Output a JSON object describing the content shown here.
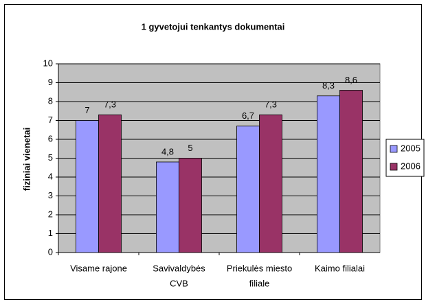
{
  "chart_data": {
    "type": "bar",
    "title": "1 gyvetojui tenkantys dokumentai",
    "y_label": "fiziniai vienetai",
    "categories": [
      [
        "Visame rajone"
      ],
      [
        "Savivaldybės",
        "CVB"
      ],
      [
        "Priekulės miesto",
        "filiale"
      ],
      [
        "Kaimo filialai"
      ]
    ],
    "series": [
      {
        "name": "2005",
        "color": "#9999ff",
        "values": [
          7,
          4.8,
          6.7,
          8.3
        ],
        "value_labels": [
          "7",
          "4,8",
          "6,7",
          "8,3"
        ]
      },
      {
        "name": "2006",
        "color": "#993366",
        "values": [
          7.3,
          5,
          7.3,
          8.6
        ],
        "value_labels": [
          "7,3",
          "5",
          "7,3",
          "8,6"
        ]
      }
    ],
    "ylim": [
      0,
      10
    ],
    "yticks": [
      0,
      1,
      2,
      3,
      4,
      5,
      6,
      7,
      8,
      9,
      10
    ],
    "grid": true,
    "legend": "right",
    "plot_background": "#c0c0c0"
  }
}
